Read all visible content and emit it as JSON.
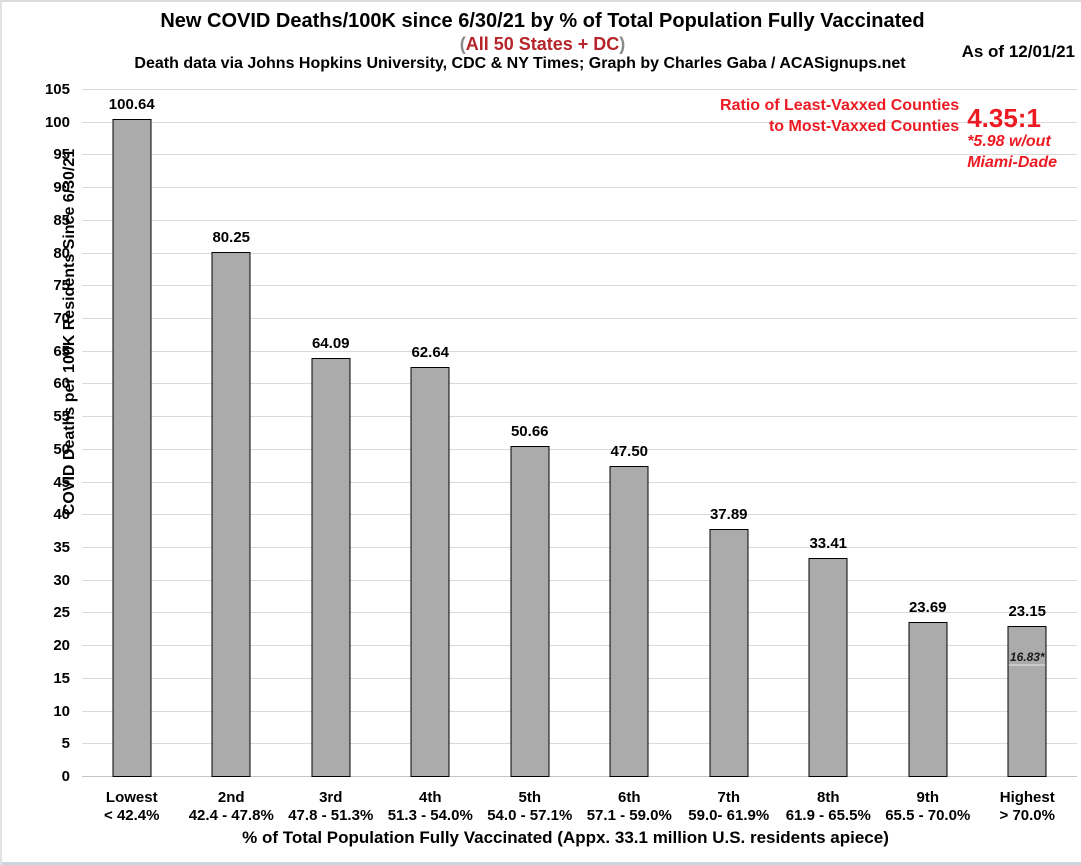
{
  "header": {
    "title": "New COVID Deaths/100K since 6/30/21 by % of Total Population Fully Vaccinated",
    "subtitle_paren_open": "(",
    "subtitle_red": "All 50 States + DC",
    "subtitle_paren_close": ")",
    "credit": "Death data via Johns Hopkins University, CDC & NY Times; Graph by Charles Gaba / ACASignups.net",
    "as_of": "As of 12/01/21"
  },
  "annotation": {
    "line1": "Ratio of Least-Vaxxed Counties",
    "line2": "to Most-Vaxxed Counties",
    "ratio_value": "4.35:1",
    "footnote_line1": "*5.98 w/out",
    "footnote_line2": "Miami-Dade",
    "color": "#EC1B23"
  },
  "colors": {
    "bar_fill": "#ABABAB",
    "bar_border": "#000000",
    "gridline": "#DADADA",
    "subtitle_red": "#B6252A",
    "annotation_red": "#EC1B23",
    "paren_gray": "#8A8A8A"
  },
  "chart_data": {
    "type": "bar",
    "title": "New COVID Deaths/100K since 6/30/21 by % of Total Population Fully Vaccinated",
    "categories": [
      {
        "name": "Lowest",
        "range": "< 42.4%"
      },
      {
        "name": "2nd",
        "range": "42.4 - 47.8%"
      },
      {
        "name": "3rd",
        "range": "47.8 - 51.3%"
      },
      {
        "name": "4th",
        "range": "51.3 - 54.0%"
      },
      {
        "name": "5th",
        "range": "54.0 - 57.1%"
      },
      {
        "name": "6th",
        "range": "57.1 - 59.0%"
      },
      {
        "name": "7th",
        "range": "59.0- 61.9%"
      },
      {
        "name": "8th",
        "range": "61.9 - 65.5%"
      },
      {
        "name": "9th",
        "range": "65.5 - 70.0%"
      },
      {
        "name": "Highest",
        "range": "> 70.0%"
      }
    ],
    "values": [
      100.64,
      80.25,
      64.09,
      62.64,
      50.66,
      47.5,
      37.89,
      33.41,
      23.69,
      23.15
    ],
    "value_labels": [
      "100.64",
      "80.25",
      "64.09",
      "62.64",
      "50.66",
      "47.50",
      "37.89",
      "33.41",
      "23.69",
      "23.15"
    ],
    "inner_note": {
      "label": "16.83*",
      "value": 16.83,
      "bar_index": 9
    },
    "xlabel": "% of Total Population Fully Vaccinated (Appx. 33.1 million U.S. residents apiece)",
    "ylabel": "COVID Deaths per 100K Residents Since 6/30/21",
    "ylim": [
      0,
      105
    ],
    "y_tick_step": 5,
    "grid": true,
    "legend": false
  }
}
